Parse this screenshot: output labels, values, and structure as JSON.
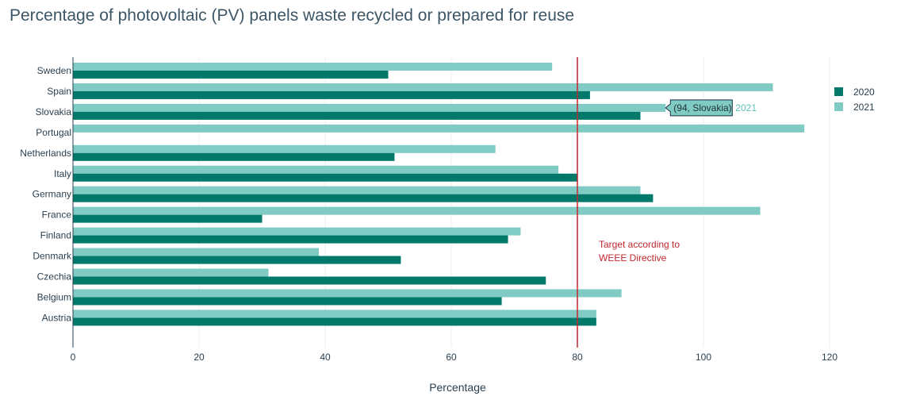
{
  "chart_data": {
    "type": "bar",
    "orientation": "horizontal",
    "title": "Percentage of photovoltaic (PV) panels waste recycled or prepared for reuse",
    "xlabel": "Percentage",
    "ylabel": "",
    "xlim": [
      0,
      125
    ],
    "x_ticks": [
      0,
      20,
      40,
      60,
      80,
      100,
      120
    ],
    "grid": true,
    "legend_position": "top-right",
    "categories": [
      "Sweden",
      "Spain",
      "Slovakia",
      "Portugal",
      "Netherlands",
      "Italy",
      "Germany",
      "France",
      "Finland",
      "Denmark",
      "Czechia",
      "Belgium",
      "Austria"
    ],
    "series": [
      {
        "name": "2020",
        "color": "#00796b",
        "values": [
          50,
          82,
          90,
          null,
          51,
          80,
          92,
          30,
          69,
          52,
          75,
          68,
          83
        ]
      },
      {
        "name": "2021",
        "color": "#80cbc4",
        "values": [
          76,
          111,
          94,
          116,
          67,
          77,
          90,
          109,
          71,
          39,
          31,
          87,
          83
        ]
      }
    ],
    "reference_line": {
      "x": 80,
      "color": "#c0282d",
      "label_lines": [
        "Target according to",
        "WEEE Directive"
      ]
    },
    "tooltip": {
      "text": "(94, Slovakia)",
      "series": "2021",
      "category": "Slovakia",
      "value": 94
    }
  }
}
